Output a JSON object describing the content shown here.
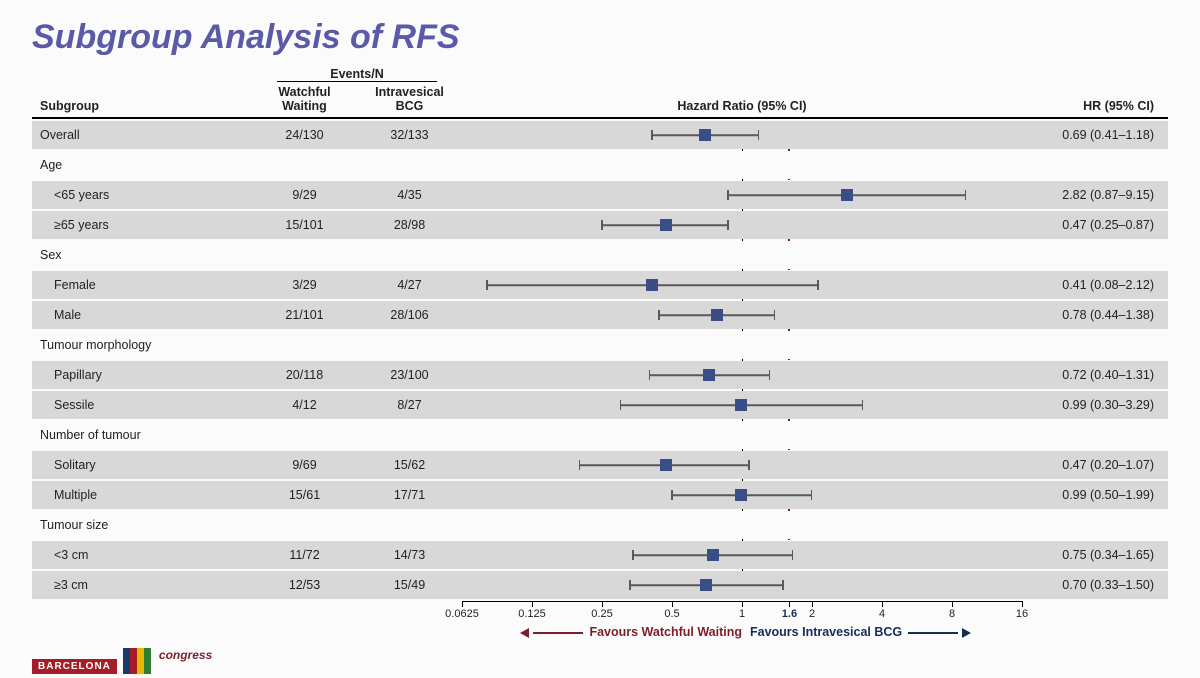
{
  "title": {
    "text": "Subgroup Analysis of RFS",
    "color": "#5a5aa8",
    "fontsize": 34
  },
  "columns": {
    "subgroup": "Subgroup",
    "events_super": "Events/N",
    "ww": "Watchful\nWaiting",
    "bcg": "Intravesical\nBCG",
    "plot": "Hazard Ratio (95% CI)",
    "hrci": "HR (95% CI)"
  },
  "forest": {
    "scale": "log",
    "xmin": 0.0625,
    "xmax": 16,
    "ticks": [
      0.0625,
      0.125,
      0.25,
      0.5,
      1,
      2,
      4,
      8,
      16
    ],
    "special_tick": {
      "value": 1.6,
      "label": "1.6",
      "weight": 700,
      "color": "#152e56"
    },
    "ref_line": {
      "value": 1,
      "style": "solid",
      "color": "#000000"
    },
    "ref_line2": {
      "value": 1.6,
      "style": "dashed",
      "color": "#8a0f4a",
      "dash": "4 4"
    },
    "marker_color": "#3a4e86",
    "ci_color": "#595959",
    "favours_left": {
      "text": "Favours Watchful Waiting",
      "color": "#7a1e2e"
    },
    "favours_right": {
      "text": "Favours Intravesical BCG",
      "color": "#152e56"
    }
  },
  "band_colors": {
    "shaded": "#d8d8d8",
    "plain": "#fbfbfb"
  },
  "rows": [
    {
      "type": "data",
      "shade": true,
      "indent": false,
      "label": "Overall",
      "ww": "24/130",
      "bcg": "32/133",
      "hr": 0.69,
      "lo": 0.41,
      "hi": 1.18,
      "hr_text": "0.69 (0.41–1.18)"
    },
    {
      "type": "header",
      "shade": false,
      "label": "Age"
    },
    {
      "type": "data",
      "shade": true,
      "indent": true,
      "label": "<65 years",
      "ww": "9/29",
      "bcg": "4/35",
      "hr": 2.82,
      "lo": 0.87,
      "hi": 9.15,
      "hr_text": "2.82 (0.87–9.15)"
    },
    {
      "type": "data",
      "shade": true,
      "indent": true,
      "label": "≥65 years",
      "ww": "15/101",
      "bcg": "28/98",
      "hr": 0.47,
      "lo": 0.25,
      "hi": 0.87,
      "hr_text": "0.47 (0.25–0.87)"
    },
    {
      "type": "header",
      "shade": false,
      "label": "Sex"
    },
    {
      "type": "data",
      "shade": true,
      "indent": true,
      "label": "Female",
      "ww": "3/29",
      "bcg": "4/27",
      "hr": 0.41,
      "lo": 0.08,
      "hi": 2.12,
      "hr_text": "0.41 (0.08–2.12)"
    },
    {
      "type": "data",
      "shade": true,
      "indent": true,
      "label": "Male",
      "ww": "21/101",
      "bcg": "28/106",
      "hr": 0.78,
      "lo": 0.44,
      "hi": 1.38,
      "hr_text": "0.78 (0.44–1.38)"
    },
    {
      "type": "header",
      "shade": false,
      "label": "Tumour morphology"
    },
    {
      "type": "data",
      "shade": true,
      "indent": true,
      "label": "Papillary",
      "ww": "20/118",
      "bcg": "23/100",
      "hr": 0.72,
      "lo": 0.4,
      "hi": 1.31,
      "hr_text": "0.72 (0.40–1.31)"
    },
    {
      "type": "data",
      "shade": true,
      "indent": true,
      "label": "Sessile",
      "ww": "4/12",
      "bcg": "8/27",
      "hr": 0.99,
      "lo": 0.3,
      "hi": 3.29,
      "hr_text": "0.99 (0.30–3.29)"
    },
    {
      "type": "header",
      "shade": false,
      "label": "Number of tumour"
    },
    {
      "type": "data",
      "shade": true,
      "indent": true,
      "label": "Solitary",
      "ww": "9/69",
      "bcg": "15/62",
      "hr": 0.47,
      "lo": 0.2,
      "hi": 1.07,
      "hr_text": "0.47 (0.20–1.07)"
    },
    {
      "type": "data",
      "shade": true,
      "indent": true,
      "label": "Multiple",
      "ww": "15/61",
      "bcg": "17/71",
      "hr": 0.99,
      "lo": 0.5,
      "hi": 1.99,
      "hr_text": "0.99 (0.50–1.99)"
    },
    {
      "type": "header",
      "shade": false,
      "label": "Tumour size"
    },
    {
      "type": "data",
      "shade": true,
      "indent": true,
      "label": "<3 cm",
      "ww": "11/72",
      "bcg": "14/73",
      "hr": 0.75,
      "lo": 0.34,
      "hi": 1.65,
      "hr_text": "0.75 (0.34–1.65)"
    },
    {
      "type": "data",
      "shade": true,
      "indent": true,
      "label": "≥3 cm",
      "ww": "12/53",
      "bcg": "15/49",
      "hr": 0.7,
      "lo": 0.33,
      "hi": 1.5,
      "hr_text": "0.70 (0.33–1.50)"
    }
  ],
  "footer": {
    "barcelona": "BARCELONA",
    "esmo_colors": [
      "#1a3a6e",
      "#a61d2a",
      "#e6b800",
      "#2e7d32"
    ],
    "congress": "congress"
  }
}
